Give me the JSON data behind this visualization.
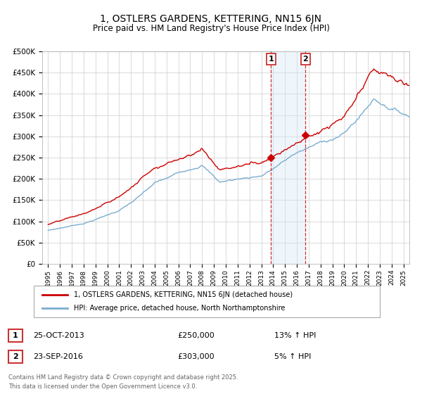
{
  "title": "1, OSTLERS GARDENS, KETTERING, NN15 6JN",
  "subtitle": "Price paid vs. HM Land Registry's House Price Index (HPI)",
  "ylim": [
    0,
    500000
  ],
  "yticks": [
    0,
    50000,
    100000,
    150000,
    200000,
    250000,
    300000,
    350000,
    400000,
    450000,
    500000
  ],
  "ytick_labels": [
    "£0",
    "£50K",
    "£100K",
    "£150K",
    "£200K",
    "£250K",
    "£300K",
    "£350K",
    "£400K",
    "£450K",
    "£500K"
  ],
  "line_color_red": "#cc0000",
  "line_color_blue": "#7aadcf",
  "sale1_date": "25-OCT-2013",
  "sale1_price": 250000,
  "sale1_hpi": "13% ↑ HPI",
  "sale1_year": 2013.82,
  "sale2_date": "23-SEP-2016",
  "sale2_price": 303000,
  "sale2_hpi": "5% ↑ HPI",
  "sale2_year": 2016.73,
  "legend_label_red": "1, OSTLERS GARDENS, KETTERING, NN15 6JN (detached house)",
  "legend_label_blue": "HPI: Average price, detached house, North Northamptonshire",
  "footer1": "Contains HM Land Registry data © Crown copyright and database right 2025.",
  "footer2": "This data is licensed under the Open Government Licence v3.0.",
  "background_color": "#ffffff",
  "plot_bg_color": "#ffffff",
  "grid_color": "#cccccc",
  "shade_color": "#d0e8f8",
  "vline_color": "#cc0000"
}
